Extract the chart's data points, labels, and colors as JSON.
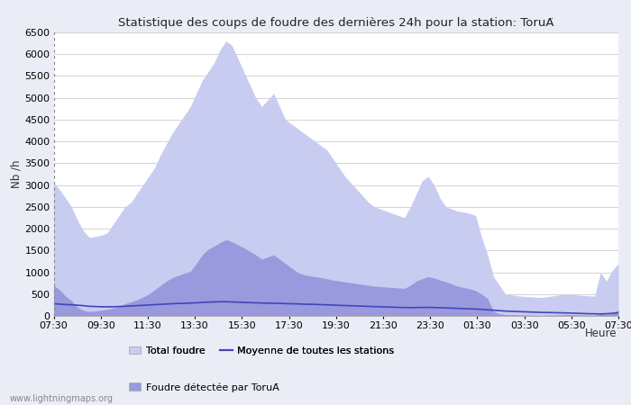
{
  "title": "Statistique des coups de foudre des dernières 24h pour la station: ToruÄ",
  "xlabel": "Heure",
  "ylabel": "Nb /h",
  "xlim": [
    0,
    96
  ],
  "ylim": [
    0,
    6500
  ],
  "yticks": [
    0,
    500,
    1000,
    1500,
    2000,
    2500,
    3000,
    3500,
    4000,
    4500,
    5000,
    5500,
    6000,
    6500
  ],
  "xtick_labels": [
    "07:30",
    "09:30",
    "11:30",
    "13:30",
    "15:30",
    "17:30",
    "19:30",
    "21:30",
    "23:30",
    "01:30",
    "03:30",
    "05:30",
    "07:30"
  ],
  "bg_color": "#eaedf5",
  "plot_bg_color": "#ffffff",
  "total_foudre_color": "#c8ccf0",
  "detected_color": "#9999dd",
  "mean_line_color": "#4444bb",
  "watermark": "www.lightningmaps.org",
  "total_foudre": [
    3050,
    2900,
    2700,
    2500,
    2200,
    1950,
    1800,
    1820,
    1850,
    1900,
    2100,
    2300,
    2500,
    2600,
    2800,
    3000,
    3200,
    3400,
    3700,
    3950,
    4200,
    4400,
    4600,
    4800,
    5100,
    5400,
    5600,
    5800,
    6100,
    6300,
    6200,
    5900,
    5600,
    5300,
    5000,
    4800,
    4950,
    5100,
    4800,
    4500,
    4400,
    4300,
    4200,
    4100,
    4000,
    3900,
    3800,
    3600,
    3400,
    3200,
    3050,
    2900,
    2750,
    2600,
    2500,
    2450,
    2400,
    2350,
    2300,
    2250,
    2500,
    2800,
    3100,
    3200,
    3000,
    2700,
    2500,
    2450,
    2400,
    2380,
    2350,
    2300,
    1800,
    1400,
    900,
    700,
    500,
    480,
    460,
    450,
    440,
    430,
    420,
    440,
    460,
    480,
    500,
    490,
    480,
    470,
    460,
    450,
    1000,
    800,
    1050,
    1200
  ],
  "detected_foudre": [
    700,
    600,
    450,
    350,
    200,
    130,
    100,
    110,
    130,
    150,
    180,
    220,
    280,
    320,
    370,
    430,
    500,
    600,
    700,
    800,
    880,
    930,
    980,
    1020,
    1200,
    1400,
    1530,
    1600,
    1680,
    1750,
    1700,
    1630,
    1560,
    1480,
    1400,
    1300,
    1350,
    1400,
    1300,
    1200,
    1100,
    1000,
    950,
    920,
    900,
    880,
    850,
    820,
    800,
    780,
    760,
    740,
    720,
    700,
    680,
    670,
    660,
    650,
    640,
    630,
    700,
    800,
    850,
    900,
    870,
    820,
    780,
    730,
    680,
    650,
    620,
    580,
    500,
    400,
    100,
    50,
    30,
    30,
    25,
    22,
    20,
    18,
    15,
    18,
    20,
    25,
    30,
    28,
    25,
    22,
    18,
    15,
    50,
    30,
    60,
    130
  ],
  "mean_line": [
    280,
    270,
    260,
    255,
    245,
    235,
    220,
    215,
    210,
    208,
    210,
    215,
    220,
    228,
    235,
    242,
    250,
    258,
    265,
    272,
    280,
    285,
    290,
    295,
    300,
    310,
    315,
    320,
    325,
    325,
    320,
    315,
    310,
    305,
    300,
    295,
    292,
    290,
    287,
    282,
    278,
    275,
    270,
    267,
    263,
    258,
    253,
    248,
    242,
    238,
    233,
    228,
    223,
    218,
    213,
    208,
    204,
    200,
    196,
    192,
    190,
    192,
    195,
    195,
    192,
    188,
    183,
    178,
    172,
    167,
    162,
    157,
    150,
    140,
    130,
    120,
    110,
    105,
    100,
    95,
    90,
    85,
    80,
    78,
    75,
    72,
    68,
    65,
    60,
    55,
    50,
    48,
    45,
    50,
    60,
    75
  ]
}
